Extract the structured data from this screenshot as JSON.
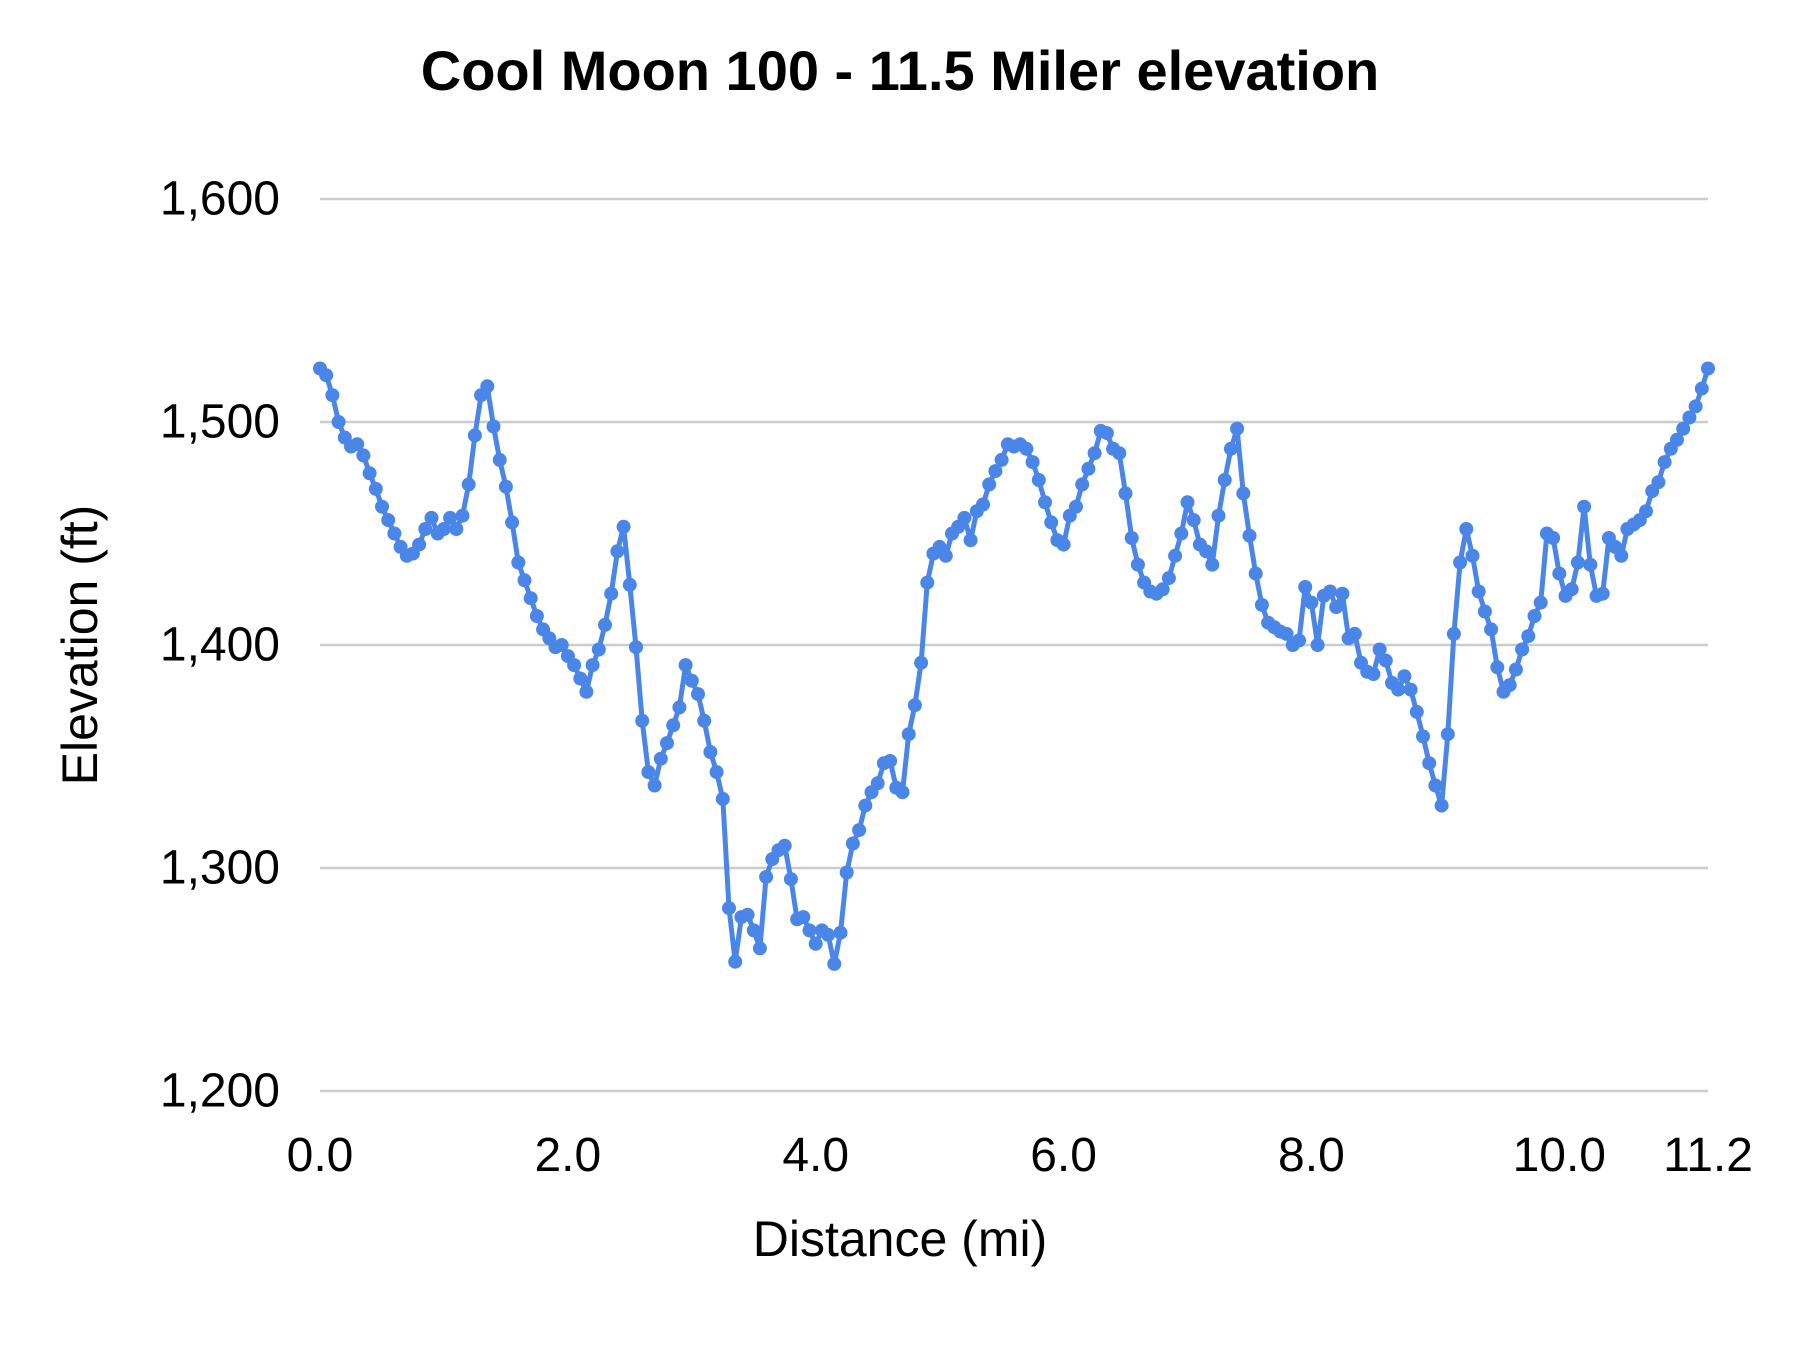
{
  "chart": {
    "title": "Cool Moon 100 - 11.5 Miler elevation",
    "x_axis_title": "Distance (mi)",
    "y_axis_title": "Elevation (ft)"
  },
  "chart_data": {
    "type": "line",
    "title": "Cool Moon 100 - 11.5 Miler elevation",
    "xlabel": "Distance (mi)",
    "ylabel": "Elevation (ft)",
    "legend": "none",
    "grid": "horizontal",
    "marker": "circle",
    "series_color": "#4a86e8",
    "gridline_color": "#cccccc",
    "text_color": "#000000",
    "xlim": [
      0,
      11.2
    ],
    "ylim": [
      1200,
      1600
    ],
    "x_tick_labels": [
      "0.0",
      "2.0",
      "4.0",
      "6.0",
      "8.0",
      "10.0",
      "11.2"
    ],
    "x_tick_values": [
      0,
      2,
      4,
      6,
      8,
      10,
      11.2
    ],
    "y_tick_labels": [
      "1,200",
      "1,300",
      "1,400",
      "1,500",
      "1,600"
    ],
    "y_tick_values": [
      1200,
      1300,
      1400,
      1500,
      1600
    ],
    "series_name": "Elevation (ft)",
    "x_start": 0,
    "x_step": 0.05,
    "x_end": 11.2,
    "elevation_ft": [
      1524,
      1521,
      1512,
      1500,
      1493,
      1489,
      1490,
      1485,
      1477,
      1470,
      1462,
      1456,
      1450,
      1444,
      1440,
      1441,
      1445,
      1452,
      1457,
      1450,
      1452,
      1457,
      1452,
      1458,
      1472,
      1494,
      1512,
      1516,
      1498,
      1483,
      1471,
      1455,
      1437,
      1429,
      1421,
      1413,
      1407,
      1403,
      1399,
      1400,
      1395,
      1391,
      1385,
      1379,
      1391,
      1398,
      1409,
      1423,
      1442,
      1453,
      1427,
      1399,
      1366,
      1343,
      1337,
      1349,
      1356,
      1364,
      1372,
      1391,
      1384,
      1378,
      1366,
      1352,
      1343,
      1331,
      1282,
      1258,
      1278,
      1279,
      1272,
      1264,
      1296,
      1304,
      1308,
      1310,
      1295,
      1277,
      1278,
      1272,
      1266,
      1272,
      1270,
      1257,
      1271,
      1298,
      1311,
      1317,
      1328,
      1334,
      1338,
      1347,
      1348,
      1336,
      1334,
      1360,
      1373,
      1392,
      1428,
      1441,
      1444,
      1440,
      1450,
      1453,
      1457,
      1447,
      1460,
      1463,
      1472,
      1478,
      1483,
      1490,
      1489,
      1490,
      1488,
      1482,
      1474,
      1464,
      1455,
      1447,
      1445,
      1458,
      1462,
      1472,
      1479,
      1486,
      1496,
      1495,
      1488,
      1486,
      1468,
      1448,
      1436,
      1428,
      1424,
      1423,
      1425,
      1430,
      1440,
      1450,
      1464,
      1456,
      1445,
      1442,
      1436,
      1458,
      1474,
      1488,
      1497,
      1468,
      1449,
      1432,
      1418,
      1410,
      1408,
      1406,
      1405,
      1400,
      1402,
      1426,
      1419,
      1400,
      1422,
      1424,
      1417,
      1423,
      1403,
      1405,
      1392,
      1388,
      1387,
      1398,
      1393,
      1383,
      1380,
      1386,
      1380,
      1370,
      1359,
      1347,
      1337,
      1328,
      1360,
      1405,
      1437,
      1452,
      1440,
      1424,
      1415,
      1407,
      1390,
      1379,
      1382,
      1389,
      1398,
      1404,
      1413,
      1419,
      1450,
      1448,
      1432,
      1422,
      1425,
      1437,
      1462,
      1436,
      1422,
      1423,
      1448,
      1444,
      1440,
      1452,
      1454,
      1456,
      1460,
      1469,
      1473,
      1482,
      1488,
      1492,
      1497,
      1502,
      1507,
      1515,
      1524
    ]
  },
  "layout_note": "static chart image, no interactive controls visible"
}
